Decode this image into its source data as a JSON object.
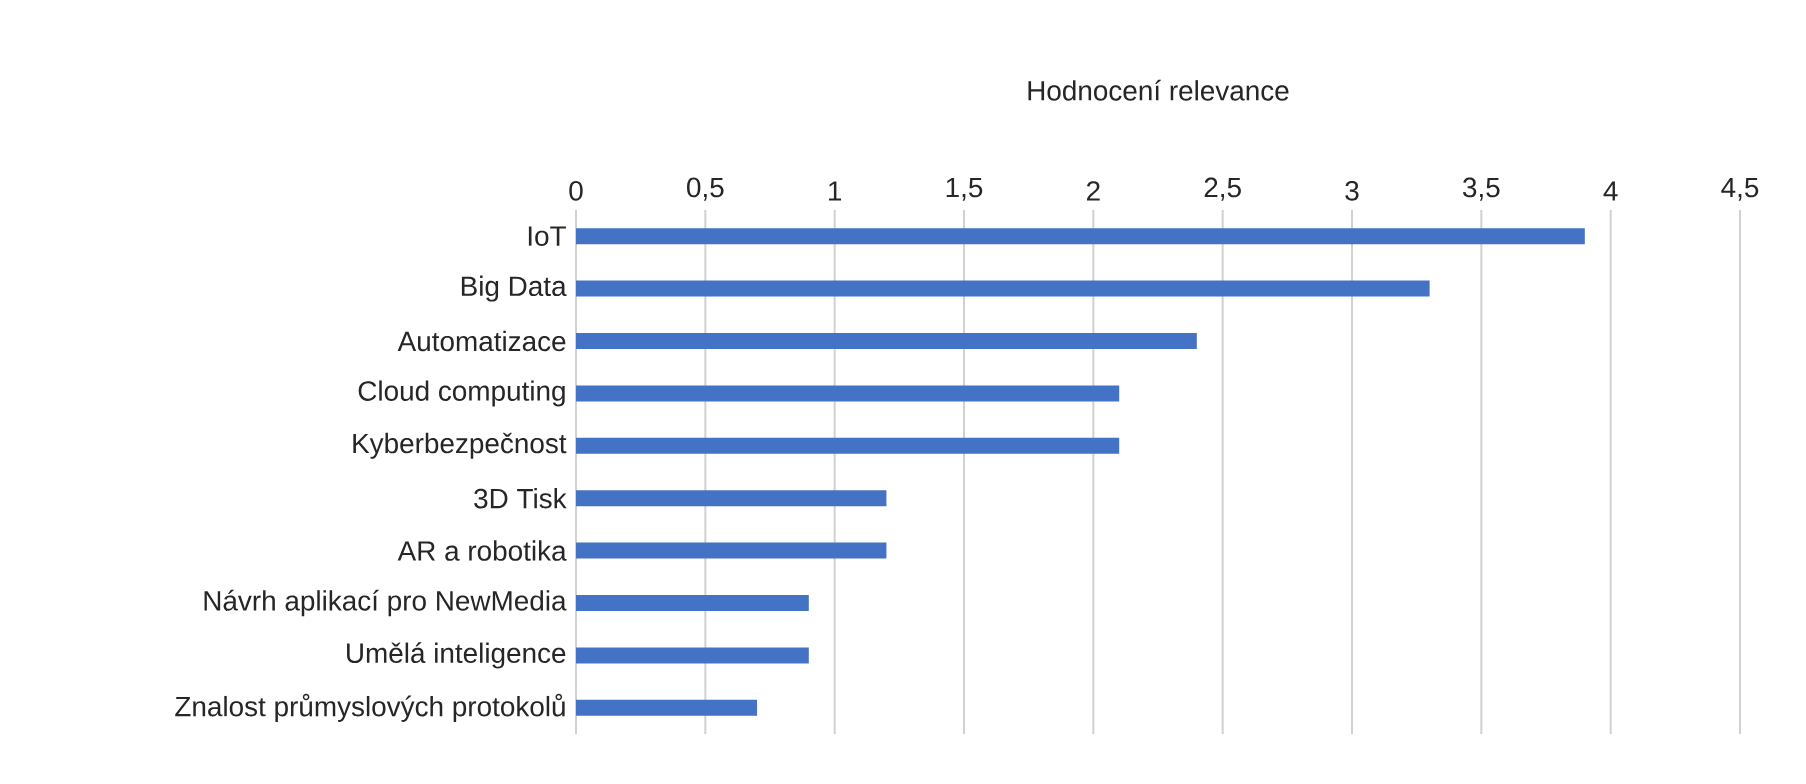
{
  "chart_data": {
    "type": "bar",
    "orientation": "horizontal",
    "xlabel": "Hodnocení relevance",
    "categories": [
      "IoT",
      "Big Data",
      "Automatizace",
      "Cloud computing",
      "Kyberbezpečnost",
      "3D Tisk",
      "AR a robotika",
      "Návrh aplikací pro NewMedia",
      "Umělá inteligence",
      "Znalost průmyslových protokolů"
    ],
    "values": [
      3.9,
      3.3,
      2.4,
      2.1,
      2.1,
      1.2,
      1.2,
      0.9,
      0.9,
      0.7
    ],
    "color": "#4472c4",
    "xlim": [
      0,
      4.5
    ],
    "xticks": [
      0,
      {
        "value": 0.5,
        "label": "0,5"
      },
      1,
      {
        "value": 1.5,
        "label": "1,5"
      },
      2,
      {
        "value": 2.5,
        "label": "2,5"
      },
      3,
      {
        "value": 3.5,
        "label": "3,5"
      },
      4,
      {
        "value": 4.5,
        "label": "4,5"
      }
    ],
    "grid": "x"
  }
}
